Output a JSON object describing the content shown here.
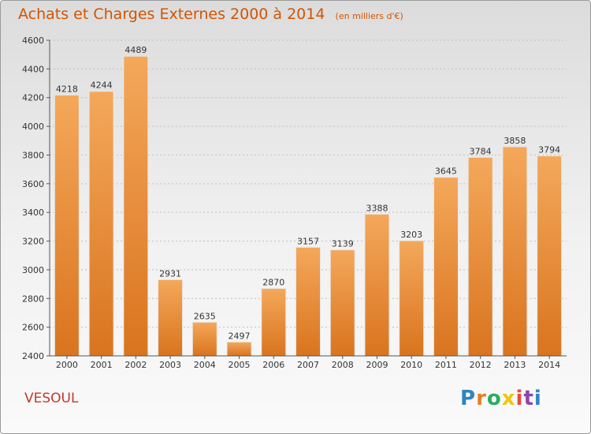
{
  "header": {
    "title": "Achats et Charges Externes 2000 à 2014",
    "subtitle": "(en milliers d'€)"
  },
  "footer": {
    "city": "VESOUL",
    "brand_letters": [
      {
        "char": "P",
        "color": "#2e86c1"
      },
      {
        "char": "r",
        "color": "#e67e22"
      },
      {
        "char": "o",
        "color": "#27ae60"
      },
      {
        "char": "x",
        "color": "#f1c40f"
      },
      {
        "char": "i",
        "color": "#e74c3c"
      },
      {
        "char": "t",
        "color": "#8e44ad"
      },
      {
        "char": "i",
        "color": "#2e86c1"
      }
    ]
  },
  "colors": {
    "bar_light": "#f4a85a",
    "bar_dark": "#d9741f",
    "grid": "#bfbfbf",
    "title": "#d35400"
  },
  "chart_data": {
    "type": "bar",
    "categories": [
      "2000",
      "2001",
      "2002",
      "2003",
      "2004",
      "2005",
      "2006",
      "2007",
      "2008",
      "2009",
      "2010",
      "2011",
      "2012",
      "2013",
      "2014"
    ],
    "values": [
      4218,
      4244,
      4489,
      2931,
      2635,
      2497,
      2870,
      3157,
      3139,
      3388,
      3203,
      3645,
      3784,
      3858,
      3794
    ],
    "title": "Achats et Charges Externes 2000 à 2014",
    "subtitle": "(en milliers d'€)",
    "ylim": [
      2400,
      4600
    ],
    "yticks": [
      2400,
      2600,
      2800,
      3000,
      3200,
      3400,
      3600,
      3800,
      4000,
      4200,
      4400,
      4600
    ],
    "grid": true,
    "data_labels": true
  }
}
